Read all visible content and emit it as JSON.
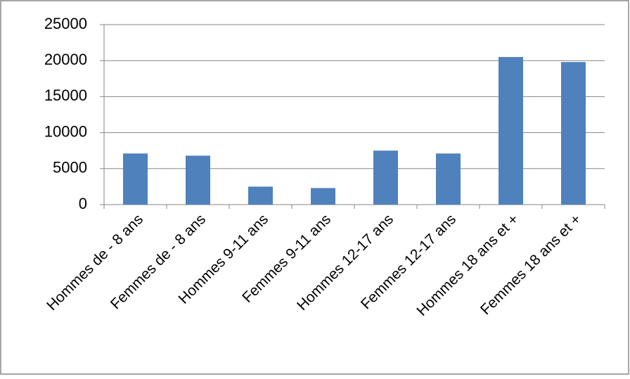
{
  "chart_data": {
    "type": "bar",
    "categories": [
      "Hommes de - 8 ans",
      "Femmes de - 8 ans",
      "Hommes 9-11 ans",
      "Femmes 9-11 ans",
      "Hommes 12-17 ans",
      "Femmes 12-17 ans",
      "Hommes 18 ans et +",
      "Femmes 18 ans et +"
    ],
    "values": [
      7100,
      6800,
      2500,
      2300,
      7500,
      7100,
      20500,
      19800
    ],
    "color": "#4f81bd",
    "ylim": [
      0,
      25000
    ],
    "yticks": [
      0,
      5000,
      10000,
      15000,
      20000,
      25000
    ],
    "grid": true
  }
}
